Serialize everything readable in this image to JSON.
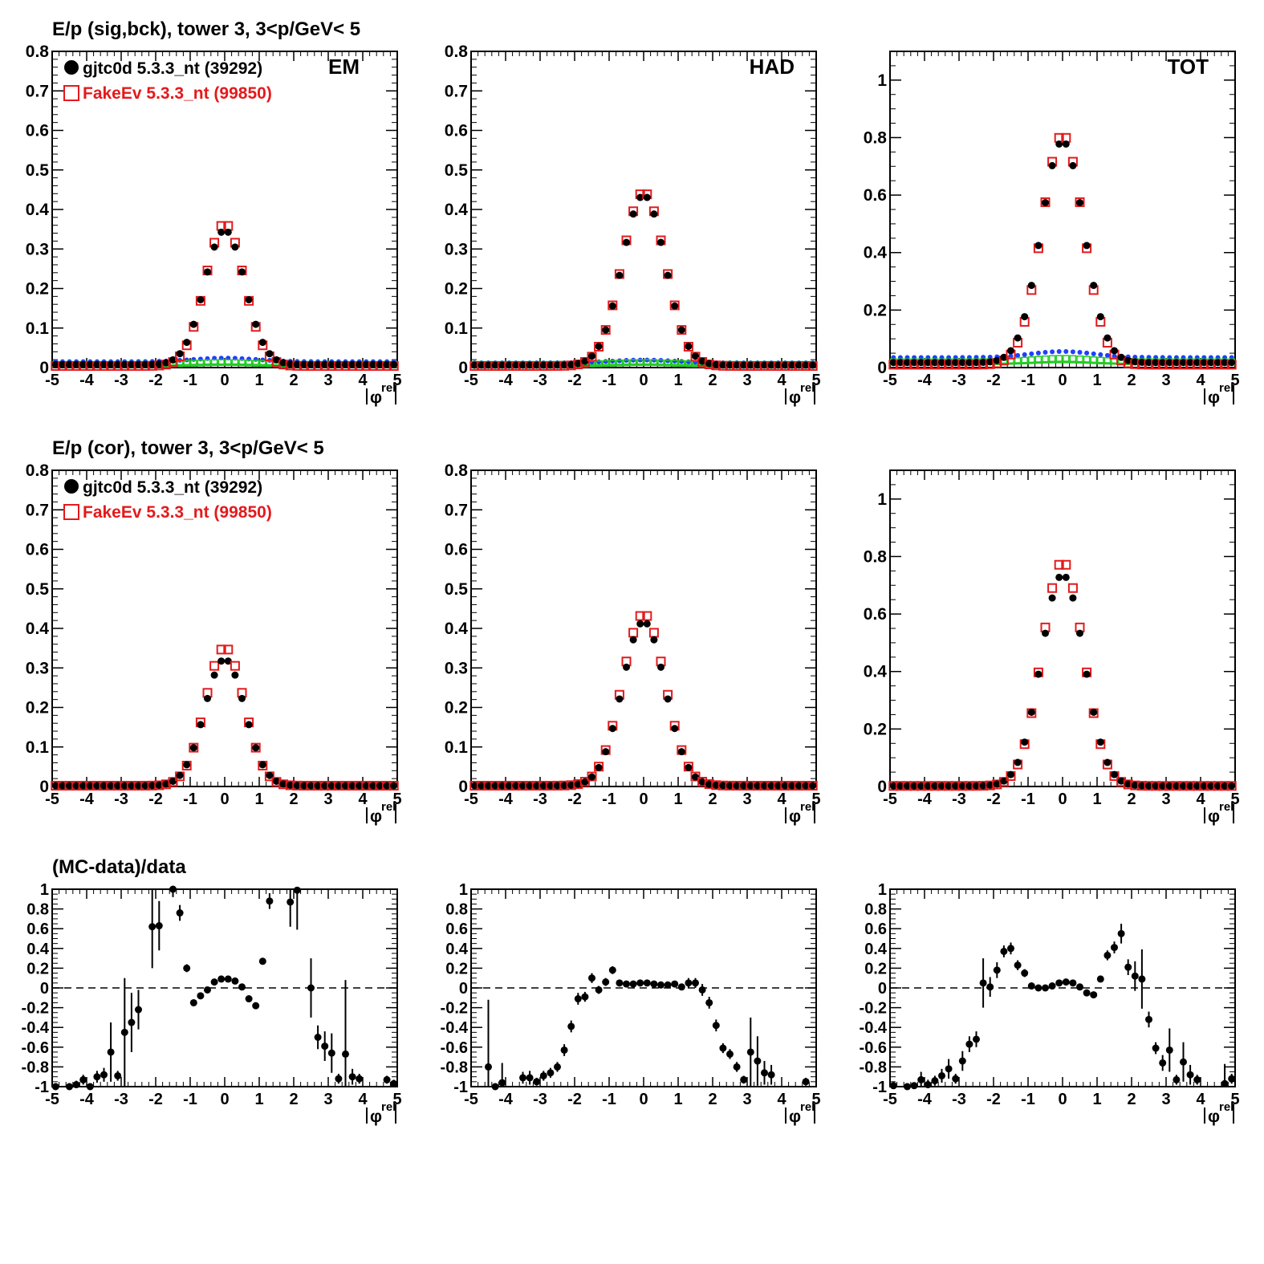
{
  "figure": {
    "row_titles": [
      "E/p (sig,bck), tower 3,  3<p/GeV< 5",
      "E/p (cor), tower 3,  3<p/GeV< 5",
      "(MC-data)/data"
    ],
    "x_label": "|φrel|",
    "legend": [
      {
        "label": "gjtc0d 5.3.3_nt (39292)",
        "marker": "filled-circle",
        "color": "#000000"
      },
      {
        "label": "FakeEv 5.3.3_nt (99850)",
        "marker": "open-square",
        "color": "#e31a1c"
      }
    ],
    "colors": {
      "data": "#000000",
      "mc": "#e31a1c",
      "bck_data": "#1f3fff",
      "bck_mc": "#22cc22"
    }
  },
  "chart_data": [
    {
      "id": "r0c0",
      "type": "scatter",
      "corner_label": "EM",
      "title": "E/p (sig,bck), tower 3,  3<p/GeV< 5",
      "xlim": [
        -5,
        5
      ],
      "ylim": [
        0,
        0.8
      ],
      "show_legend": true,
      "background": true,
      "x_ticks": [
        "-5",
        "-4",
        "-3",
        "-2",
        "-1",
        "0",
        "1",
        "2",
        "3",
        "4",
        "5"
      ],
      "y_ticks": [
        "0",
        "0.1",
        "0.2",
        "0.3",
        "0.4",
        "0.5",
        "0.6",
        "0.7",
        "0.8"
      ],
      "peak_data": 0.34,
      "peak_mc": 0.36,
      "width_data": 0.58,
      "width_mc": 0.56,
      "bck_data": 0.015,
      "bck_mc": 0.008
    },
    {
      "id": "r0c1",
      "type": "scatter",
      "corner_label": "HAD",
      "title": "",
      "xlim": [
        -5,
        5
      ],
      "ylim": [
        0,
        0.8
      ],
      "show_legend": false,
      "background": true,
      "x_ticks": [
        "-5",
        "-4",
        "-3",
        "-2",
        "-1",
        "0",
        "1",
        "2",
        "3",
        "4",
        "5"
      ],
      "y_ticks": [
        "0",
        "0.1",
        "0.2",
        "0.3",
        "0.4",
        "0.5",
        "0.6",
        "0.7",
        "0.8"
      ],
      "peak_data": 0.43,
      "peak_mc": 0.44,
      "width_data": 0.62,
      "width_mc": 0.62,
      "bck_data": 0.012,
      "bck_mc": 0.008
    },
    {
      "id": "r0c2",
      "type": "scatter",
      "corner_label": "TOT",
      "title": "",
      "xlim": [
        -5,
        5
      ],
      "ylim": [
        0,
        1.1
      ],
      "show_legend": false,
      "background": true,
      "x_ticks": [
        "-5",
        "-4",
        "-3",
        "-2",
        "-1",
        "0",
        "1",
        "2",
        "3",
        "4",
        "5"
      ],
      "y_ticks": [
        "0",
        "0.2",
        "0.4",
        "0.6",
        "0.8",
        "1"
      ],
      "peak_data": 0.77,
      "peak_mc": 0.8,
      "width_data": 0.62,
      "width_mc": 0.6,
      "bck_data": 0.035,
      "bck_mc": 0.02
    },
    {
      "id": "r1c0",
      "type": "scatter",
      "corner_label": "",
      "title": "E/p (cor), tower 3,  3<p/GeV< 5",
      "xlim": [
        -5,
        5
      ],
      "ylim": [
        0,
        0.8
      ],
      "show_legend": true,
      "background": false,
      "x_ticks": [
        "-5",
        "-4",
        "-3",
        "-2",
        "-1",
        "0",
        "1",
        "2",
        "3",
        "4",
        "5"
      ],
      "y_ticks": [
        "0",
        "0.1",
        "0.2",
        "0.3",
        "0.4",
        "0.5",
        "0.6",
        "0.7",
        "0.8"
      ],
      "peak_data": 0.32,
      "peak_mc": 0.35,
      "width_data": 0.58,
      "width_mc": 0.56
    },
    {
      "id": "r1c1",
      "type": "scatter",
      "corner_label": "",
      "title": "",
      "xlim": [
        -5,
        5
      ],
      "ylim": [
        0,
        0.8
      ],
      "show_legend": false,
      "background": false,
      "x_ticks": [
        "-5",
        "-4",
        "-3",
        "-2",
        "-1",
        "0",
        "1",
        "2",
        "3",
        "4",
        "5"
      ],
      "y_ticks": [
        "0",
        "0.1",
        "0.2",
        "0.3",
        "0.4",
        "0.5",
        "0.6",
        "0.7",
        "0.8"
      ],
      "peak_data": 0.415,
      "peak_mc": 0.435,
      "width_data": 0.62,
      "width_mc": 0.62
    },
    {
      "id": "r1c2",
      "type": "scatter",
      "corner_label": "",
      "title": "",
      "xlim": [
        -5,
        5
      ],
      "ylim": [
        0,
        1.1
      ],
      "show_legend": false,
      "background": false,
      "x_ticks": [
        "-5",
        "-4",
        "-3",
        "-2",
        "-1",
        "0",
        "1",
        "2",
        "3",
        "4",
        "5"
      ],
      "y_ticks": [
        "0",
        "0.2",
        "0.4",
        "0.6",
        "0.8",
        "1"
      ],
      "peak_data": 0.735,
      "peak_mc": 0.78,
      "width_data": 0.62,
      "width_mc": 0.6
    },
    {
      "id": "r2c0",
      "type": "scatter",
      "corner_label": "",
      "title": "(MC-data)/data",
      "xlim": [
        -5,
        5
      ],
      "ylim": [
        -1,
        1
      ],
      "ratio": true,
      "x_ticks": [
        "-5",
        "-4",
        "-3",
        "-2",
        "-1",
        "0",
        "1",
        "2",
        "3",
        "4",
        "5"
      ],
      "y_ticks": [
        "-1",
        "-0.8",
        "-0.6",
        "-0.4",
        "-0.2",
        "0",
        "0.2",
        "0.4",
        "0.6",
        "0.8",
        "1"
      ],
      "points": [
        [
          -4.9,
          -1.0,
          0.02
        ],
        [
          -4.5,
          -1.0,
          0.02
        ],
        [
          -4.3,
          -0.98,
          0.04
        ],
        [
          -4.1,
          -0.93,
          0.05
        ],
        [
          -3.9,
          -1.0,
          0.03
        ],
        [
          -3.7,
          -0.9,
          0.06
        ],
        [
          -3.5,
          -0.88,
          0.07
        ],
        [
          -3.3,
          -0.65,
          0.3
        ],
        [
          -3.1,
          -0.89,
          0.05
        ],
        [
          -2.9,
          -0.45,
          0.55
        ],
        [
          -2.7,
          -0.35,
          0.3
        ],
        [
          -2.5,
          -0.22,
          0.2
        ],
        [
          -2.1,
          0.62,
          0.42
        ],
        [
          -1.9,
          0.63,
          0.25
        ],
        [
          -1.5,
          1.0,
          0.08
        ],
        [
          -1.3,
          0.76,
          0.08
        ],
        [
          -1.1,
          0.2,
          0.04
        ],
        [
          -0.9,
          -0.15,
          0.03
        ],
        [
          -0.7,
          -0.08,
          0.03
        ],
        [
          -0.5,
          -0.02,
          0.03
        ],
        [
          -0.3,
          0.06,
          0.03
        ],
        [
          -0.1,
          0.09,
          0.02
        ],
        [
          0.1,
          0.09,
          0.02
        ],
        [
          0.3,
          0.07,
          0.02
        ],
        [
          0.5,
          0.01,
          0.02
        ],
        [
          0.7,
          -0.11,
          0.03
        ],
        [
          0.9,
          -0.18,
          0.03
        ],
        [
          1.1,
          0.27,
          0.03
        ],
        [
          1.3,
          0.88,
          0.08
        ],
        [
          1.9,
          0.87,
          0.25
        ],
        [
          2.1,
          0.99,
          0.4
        ],
        [
          2.5,
          0.0,
          0.3
        ],
        [
          2.7,
          -0.5,
          0.12
        ],
        [
          2.9,
          -0.59,
          0.15
        ],
        [
          3.1,
          -0.66,
          0.2
        ],
        [
          3.3,
          -0.92,
          0.05
        ],
        [
          3.5,
          -0.67,
          0.75
        ],
        [
          3.7,
          -0.9,
          0.08
        ],
        [
          3.9,
          -0.92,
          0.05
        ],
        [
          4.7,
          -0.93,
          0.04
        ],
        [
          4.9,
          -0.97,
          0.04
        ]
      ]
    },
    {
      "id": "r2c1",
      "type": "scatter",
      "corner_label": "",
      "title": "",
      "xlim": [
        -5,
        5
      ],
      "ylim": [
        -1,
        1
      ],
      "ratio": true,
      "x_ticks": [
        "-5",
        "-4",
        "-3",
        "-2",
        "-1",
        "0",
        "1",
        "2",
        "3",
        "4",
        "5"
      ],
      "y_ticks": [
        "-1",
        "-0.8",
        "-0.6",
        "-0.4",
        "-0.2",
        "0",
        "0.2",
        "0.4",
        "0.6",
        "0.8",
        "1"
      ],
      "points": [
        [
          -4.5,
          -0.8,
          0.68
        ],
        [
          -4.3,
          -1.0,
          0.03
        ],
        [
          -4.1,
          -0.96,
          0.2
        ],
        [
          -3.5,
          -0.91,
          0.06
        ],
        [
          -3.3,
          -0.91,
          0.07
        ],
        [
          -3.1,
          -0.95,
          0.04
        ],
        [
          -2.9,
          -0.89,
          0.05
        ],
        [
          -2.7,
          -0.86,
          0.05
        ],
        [
          -2.5,
          -0.8,
          0.05
        ],
        [
          -2.3,
          -0.63,
          0.06
        ],
        [
          -2.1,
          -0.39,
          0.06
        ],
        [
          -1.9,
          -0.11,
          0.06
        ],
        [
          -1.7,
          -0.09,
          0.05
        ],
        [
          -1.5,
          0.1,
          0.05
        ],
        [
          -1.3,
          -0.02,
          0.04
        ],
        [
          -1.1,
          0.06,
          0.04
        ],
        [
          -0.9,
          0.18,
          0.04
        ],
        [
          -0.7,
          0.05,
          0.02
        ],
        [
          -0.5,
          0.04,
          0.02
        ],
        [
          -0.3,
          0.04,
          0.02
        ],
        [
          -0.1,
          0.05,
          0.02
        ],
        [
          0.1,
          0.05,
          0.02
        ],
        [
          0.3,
          0.04,
          0.02
        ],
        [
          0.5,
          0.03,
          0.02
        ],
        [
          0.7,
          0.03,
          0.02
        ],
        [
          0.9,
          0.04,
          0.02
        ],
        [
          1.1,
          0.01,
          0.03
        ],
        [
          1.3,
          0.05,
          0.05
        ],
        [
          1.5,
          0.05,
          0.05
        ],
        [
          1.7,
          -0.02,
          0.06
        ],
        [
          1.9,
          -0.15,
          0.06
        ],
        [
          2.1,
          -0.38,
          0.06
        ],
        [
          2.3,
          -0.61,
          0.05
        ],
        [
          2.5,
          -0.67,
          0.05
        ],
        [
          2.7,
          -0.8,
          0.05
        ],
        [
          2.9,
          -0.93,
          0.04
        ],
        [
          3.1,
          -0.65,
          0.35
        ],
        [
          3.3,
          -0.74,
          0.25
        ],
        [
          3.5,
          -0.86,
          0.12
        ],
        [
          3.7,
          -0.88,
          0.1
        ],
        [
          4.7,
          -0.95,
          0.04
        ]
      ]
    },
    {
      "id": "r2c2",
      "type": "scatter",
      "corner_label": "",
      "title": "",
      "xlim": [
        -5,
        5
      ],
      "ylim": [
        -1,
        1
      ],
      "ratio": true,
      "x_ticks": [
        "-5",
        "-4",
        "-3",
        "-2",
        "-1",
        "0",
        "1",
        "2",
        "3",
        "4",
        "5"
      ],
      "y_ticks": [
        "-1",
        "-0.8",
        "-0.6",
        "-0.4",
        "-0.2",
        "0",
        "0.2",
        "0.4",
        "0.6",
        "0.8",
        "1"
      ],
      "points": [
        [
          -4.9,
          -0.99,
          0.03
        ],
        [
          -4.5,
          -1.0,
          0.02
        ],
        [
          -4.3,
          -0.99,
          0.03
        ],
        [
          -4.1,
          -0.93,
          0.08
        ],
        [
          -3.9,
          -0.98,
          0.05
        ],
        [
          -3.7,
          -0.94,
          0.05
        ],
        [
          -3.5,
          -0.89,
          0.07
        ],
        [
          -3.3,
          -0.82,
          0.1
        ],
        [
          -3.1,
          -0.92,
          0.05
        ],
        [
          -2.9,
          -0.74,
          0.1
        ],
        [
          -2.7,
          -0.57,
          0.08
        ],
        [
          -2.5,
          -0.52,
          0.08
        ],
        [
          -2.3,
          0.05,
          0.25
        ],
        [
          -2.1,
          0.01,
          0.1
        ],
        [
          -1.9,
          0.18,
          0.08
        ],
        [
          -1.7,
          0.37,
          0.06
        ],
        [
          -1.5,
          0.4,
          0.06
        ],
        [
          -1.3,
          0.23,
          0.05
        ],
        [
          -1.1,
          0.15,
          0.04
        ],
        [
          -0.9,
          0.02,
          0.03
        ],
        [
          -0.7,
          0.0,
          0.02
        ],
        [
          -0.5,
          0.0,
          0.02
        ],
        [
          -0.3,
          0.02,
          0.02
        ],
        [
          -0.1,
          0.05,
          0.02
        ],
        [
          0.1,
          0.06,
          0.02
        ],
        [
          0.3,
          0.05,
          0.02
        ],
        [
          0.5,
          0.01,
          0.02
        ],
        [
          0.7,
          -0.05,
          0.02
        ],
        [
          0.9,
          -0.07,
          0.02
        ],
        [
          1.1,
          0.09,
          0.03
        ],
        [
          1.3,
          0.33,
          0.05
        ],
        [
          1.5,
          0.41,
          0.06
        ],
        [
          1.7,
          0.55,
          0.1
        ],
        [
          1.9,
          0.21,
          0.08
        ],
        [
          2.1,
          0.12,
          0.15
        ],
        [
          2.3,
          0.09,
          0.3
        ],
        [
          2.5,
          -0.32,
          0.08
        ],
        [
          2.7,
          -0.61,
          0.06
        ],
        [
          2.9,
          -0.76,
          0.08
        ],
        [
          3.1,
          -0.63,
          0.22
        ],
        [
          3.3,
          -0.93,
          0.05
        ],
        [
          3.5,
          -0.75,
          0.2
        ],
        [
          3.7,
          -0.88,
          0.1
        ],
        [
          3.9,
          -0.93,
          0.05
        ],
        [
          4.7,
          -0.97,
          0.2
        ],
        [
          4.9,
          -0.92,
          0.05
        ]
      ]
    }
  ]
}
